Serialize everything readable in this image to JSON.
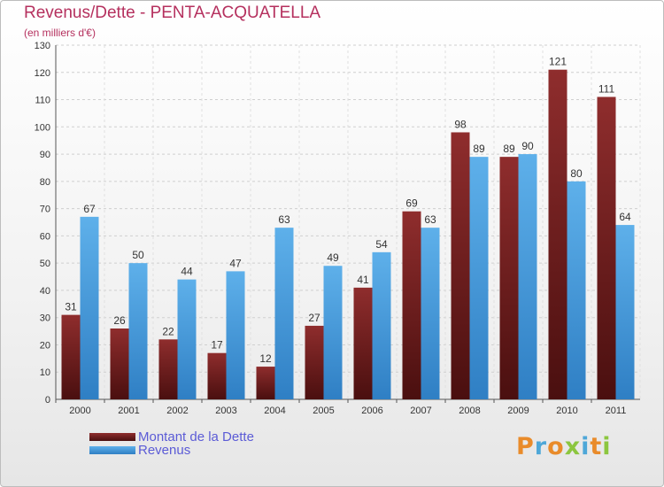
{
  "header": {
    "title": "Revenus/Dette - PENTA-ACQUATELLA",
    "subtitle": "(en milliers d'€)"
  },
  "colors": {
    "title": "#b5305e",
    "dette_dark": "#4a0f0f",
    "dette_light": "#8f2d2d",
    "revenus_dark": "#2f7fc4",
    "revenus_light": "#5eb0ea",
    "legend_text": "#5b5bd6"
  },
  "logo": {
    "text": "Proxiti",
    "letters": [
      {
        "ch": "P",
        "color": "#e98b2a"
      },
      {
        "ch": "r",
        "color": "#4ea7d8"
      },
      {
        "ch": "o",
        "color": "#e98b2a"
      },
      {
        "ch": "x",
        "color": "#8cc63f"
      },
      {
        "ch": "i",
        "color": "#4ea7d8"
      },
      {
        "ch": "t",
        "color": "#e98b2a"
      },
      {
        "ch": "i",
        "color": "#8cc63f"
      }
    ]
  },
  "chart_data": {
    "type": "bar",
    "title": "Revenus/Dette - PENTA-ACQUATELLA",
    "subtitle": "(en milliers d'€)",
    "categories": [
      "2000",
      "2001",
      "2002",
      "2003",
      "2004",
      "2005",
      "2006",
      "2007",
      "2008",
      "2009",
      "2010",
      "2011"
    ],
    "series": [
      {
        "name": "Montant de la Dette",
        "values": [
          31,
          26,
          22,
          17,
          12,
          27,
          41,
          69,
          98,
          89,
          121,
          111
        ]
      },
      {
        "name": "Revenus",
        "values": [
          67,
          50,
          44,
          47,
          63,
          49,
          54,
          63,
          89,
          90,
          80,
          64
        ]
      }
    ],
    "ylim": [
      0,
      130
    ],
    "yticks": [
      0,
      10,
      20,
      30,
      40,
      50,
      60,
      70,
      80,
      90,
      100,
      110,
      120,
      130
    ],
    "grid": true,
    "legend_position": "bottom-left"
  }
}
